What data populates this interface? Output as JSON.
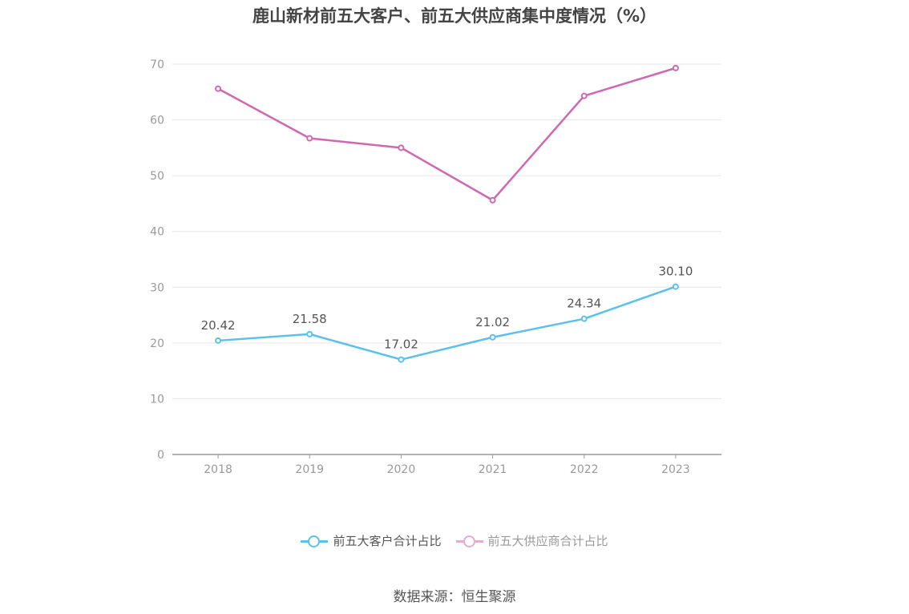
{
  "chart_data": {
    "type": "line",
    "title": "鹿山新材前五大客户、前五大供应商集中度情况（%）",
    "categories": [
      "2018",
      "2019",
      "2020",
      "2021",
      "2022",
      "2023"
    ],
    "ylim": [
      0,
      70
    ],
    "yticks": [
      "0",
      "10",
      "20",
      "30",
      "40",
      "50",
      "60",
      "70"
    ],
    "grid": true,
    "legend_position": "bottom",
    "series": [
      {
        "name": "前五大客户合计占比",
        "color": "#5bc0ec",
        "values": [
          20.42,
          21.58,
          17.02,
          21.02,
          24.34,
          30.1
        ],
        "labels": [
          "20.42",
          "21.58",
          "17.02",
          "21.02",
          "24.34",
          "30.10"
        ]
      },
      {
        "name": "前五大供应商合计占比",
        "color": "#cf68b0",
        "legend_color": "#e7a9d5",
        "values": [
          65.6,
          56.7,
          55.0,
          45.6,
          64.3,
          69.3
        ],
        "labels": null
      }
    ],
    "source": "数据来源：恒生聚源"
  }
}
